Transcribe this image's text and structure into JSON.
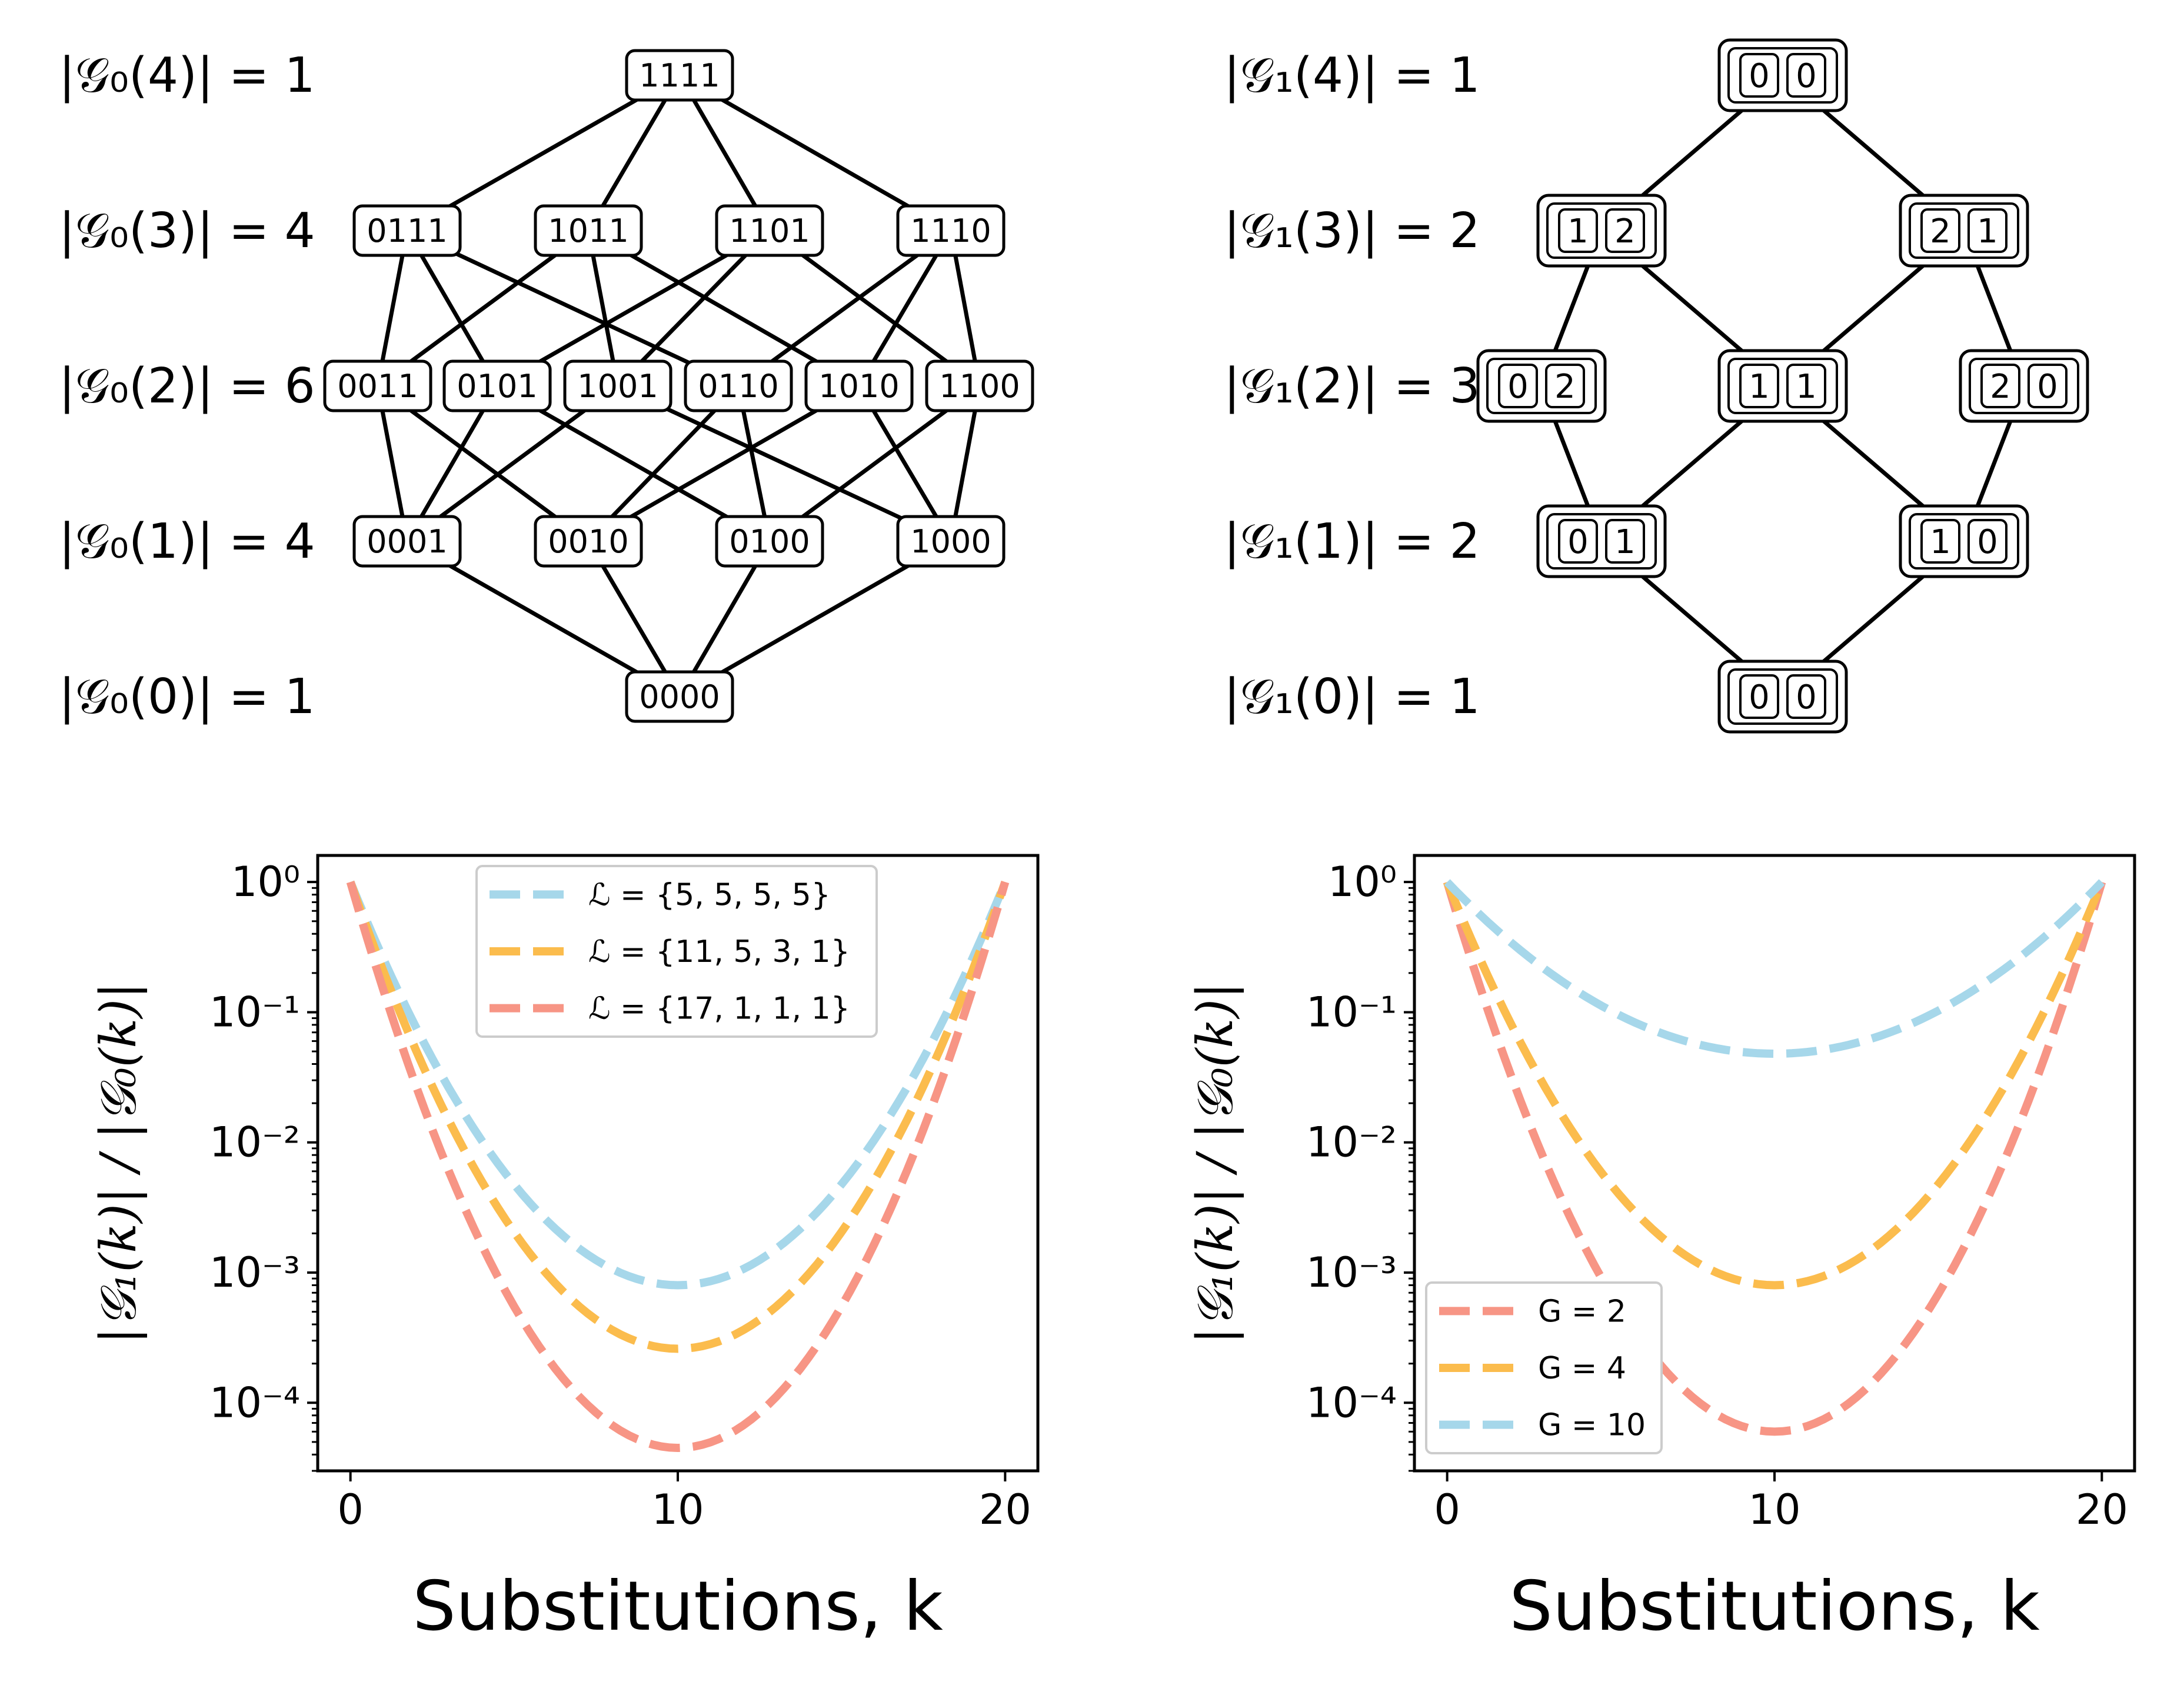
{
  "graph_left": {
    "level_labels": [
      "|𝒢₀(4)| = 1",
      "|𝒢₀(3)| = 4",
      "|𝒢₀(2)| = 6",
      "|𝒢₀(1)| = 4",
      "|𝒢₀(0)| = 1"
    ],
    "levels": [
      [
        "1111"
      ],
      [
        "0111",
        "1011",
        "1101",
        "1110"
      ],
      [
        "0011",
        "0101",
        "1001",
        "0110",
        "1010",
        "1100"
      ],
      [
        "0001",
        "0010",
        "0100",
        "1000"
      ],
      [
        "0000"
      ]
    ]
  },
  "graph_right": {
    "level_labels": [
      "|𝒢₁(4)| = 1",
      "|𝒢₁(3)| = 2",
      "|𝒢₁(2)| = 3",
      "|𝒢₁(1)| = 2",
      "|𝒢₁(0)| = 1"
    ],
    "levels": [
      [
        [
          "0",
          "0"
        ]
      ],
      [
        [
          "1",
          "2"
        ],
        [
          "2",
          "1"
        ]
      ],
      [
        [
          "0",
          "2"
        ],
        [
          "1",
          "1"
        ],
        [
          "2",
          "0"
        ]
      ],
      [
        [
          "0",
          "1"
        ],
        [
          "1",
          "0"
        ]
      ],
      [
        [
          "0",
          "0"
        ]
      ]
    ],
    "edges": [
      [
        0,
        0,
        1,
        0
      ],
      [
        0,
        0,
        1,
        1
      ],
      [
        1,
        0,
        2,
        0
      ],
      [
        1,
        0,
        2,
        1
      ],
      [
        1,
        1,
        2,
        1
      ],
      [
        1,
        1,
        2,
        2
      ],
      [
        2,
        0,
        3,
        0
      ],
      [
        2,
        1,
        3,
        0
      ],
      [
        2,
        1,
        3,
        1
      ],
      [
        2,
        2,
        3,
        1
      ],
      [
        3,
        0,
        4,
        0
      ],
      [
        3,
        1,
        4,
        0
      ]
    ]
  },
  "chart_data": [
    {
      "type": "line",
      "xlabel": "Substitutions, k",
      "ylabel": "|𝒢₁(k)| / |𝒢₀(k)|",
      "yscale": "log",
      "xlim": [
        -1,
        21
      ],
      "ylim": [
        3e-05,
        1.6
      ],
      "xticks": [
        0,
        10,
        20
      ],
      "yticks": [
        1,
        0.1,
        0.01,
        0.001,
        0.0001
      ],
      "ytick_labels": [
        "10⁰",
        "10⁻¹",
        "10⁻²",
        "10⁻³",
        "10⁻⁴"
      ],
      "legend_position": "top-center",
      "series": [
        {
          "name": "ℒ = {5, 5, 5, 5}",
          "color": "#a6d7ea",
          "min": 0.0008
        },
        {
          "name": "ℒ = {11, 5, 3, 1}",
          "color": "#fbbc4d",
          "min": 0.00026
        },
        {
          "name": "ℒ = {17, 1, 1, 1}",
          "color": "#f79585",
          "min": 4.5e-05
        }
      ]
    },
    {
      "type": "line",
      "xlabel": "Substitutions, k",
      "ylabel": "|𝒢₁(k)| / |𝒢₀(k)|",
      "yscale": "log",
      "xlim": [
        -1,
        21
      ],
      "ylim": [
        3e-05,
        1.6
      ],
      "xticks": [
        0,
        10,
        20
      ],
      "yticks": [
        1,
        0.1,
        0.01,
        0.001,
        0.0001
      ],
      "ytick_labels": [
        "10⁰",
        "10⁻¹",
        "10⁻²",
        "10⁻³",
        "10⁻⁴"
      ],
      "legend_position": "bottom-left",
      "series": [
        {
          "name": "G = 2",
          "color": "#f79585",
          "min": 6e-05
        },
        {
          "name": "G = 4",
          "color": "#fbbc4d",
          "min": 0.0008
        },
        {
          "name": "G = 10",
          "color": "#a6d7ea",
          "min": 0.048
        }
      ]
    }
  ]
}
